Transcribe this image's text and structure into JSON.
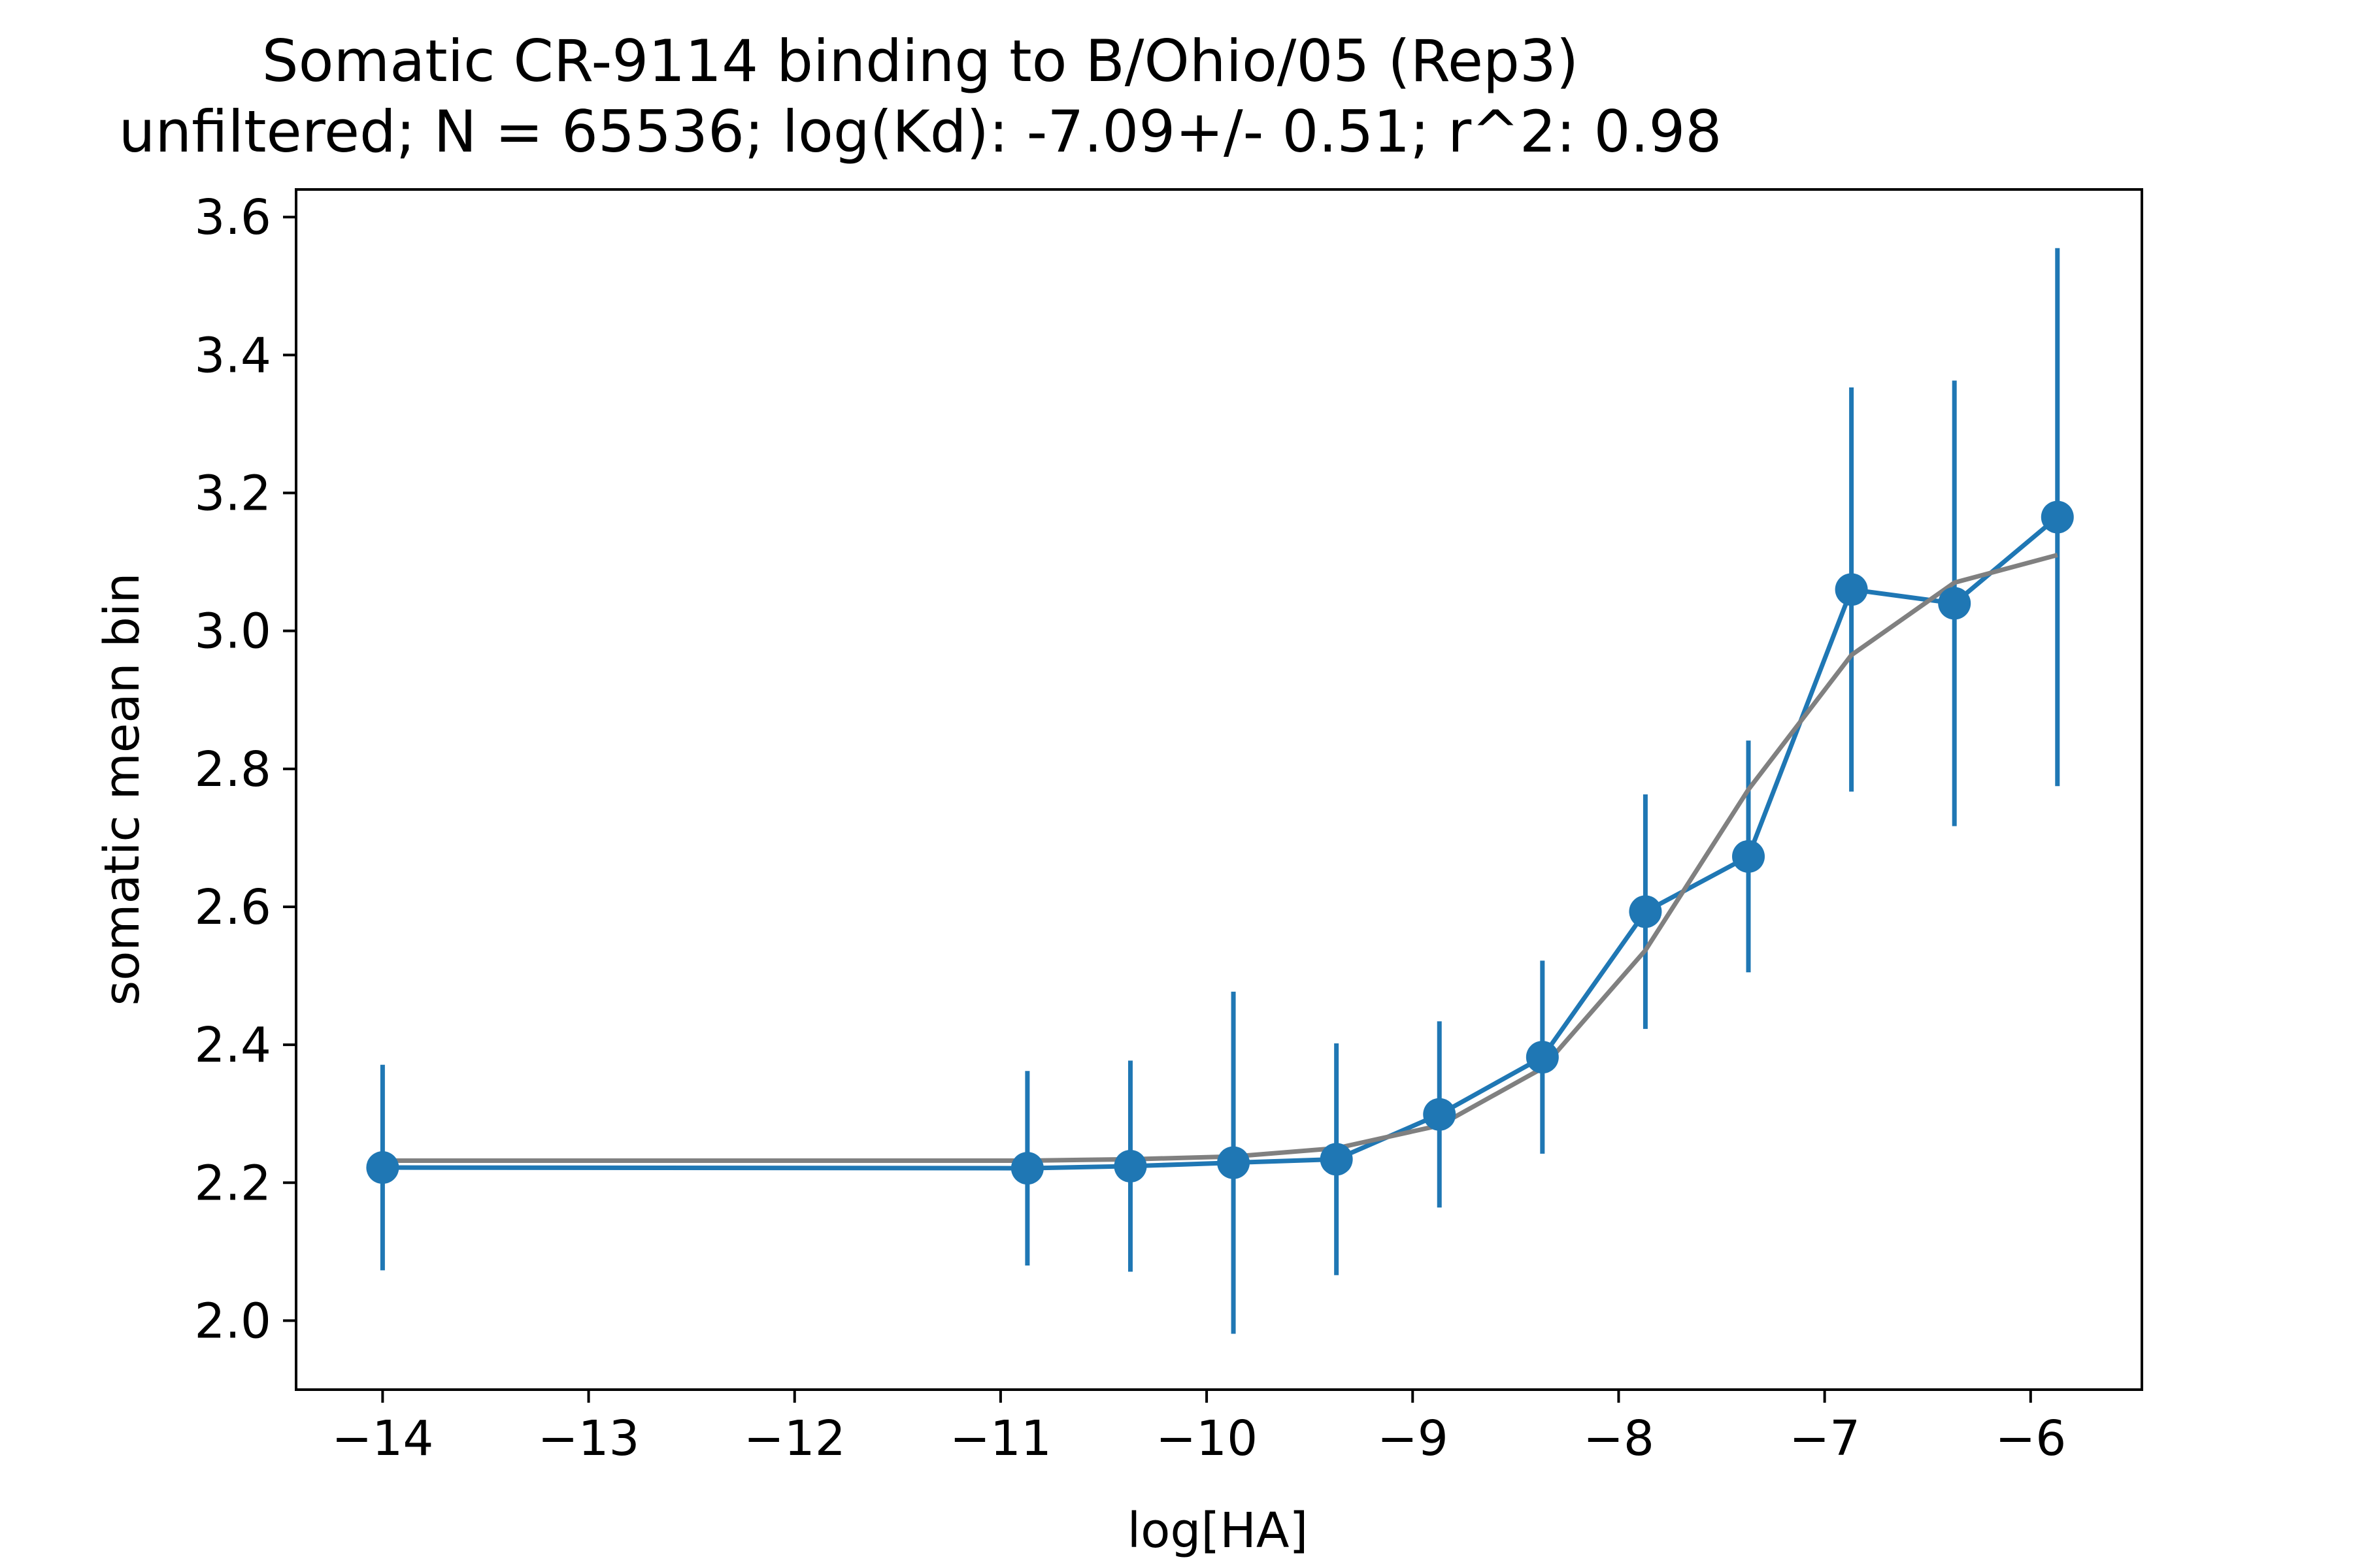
{
  "chart_data": {
    "type": "line",
    "title": "Somatic CR-9114 binding to B/Ohio/05 (Rep3)",
    "subtitle": "unfiltered; N = 65536; log(Kd): -7.09+/- 0.51; r^2: 0.98",
    "xlabel": "log[HA]",
    "ylabel": "somatic mean bin",
    "xlim": [
      -14.42,
      -5.46
    ],
    "ylim": [
      1.9,
      3.64
    ],
    "xticks": [
      -14,
      -13,
      -12,
      -11,
      -10,
      -9,
      -8,
      -7,
      -6
    ],
    "xtick_labels": [
      "−14",
      "−13",
      "−12",
      "−11",
      "−10",
      "−9",
      "−8",
      "−7",
      "−6"
    ],
    "yticks": [
      2.0,
      2.2,
      2.4,
      2.6,
      2.8,
      3.0,
      3.2,
      3.4,
      3.6
    ],
    "ytick_labels": [
      "2.0",
      "2.2",
      "2.4",
      "2.6",
      "2.8",
      "3.0",
      "3.2",
      "3.4",
      "3.6"
    ],
    "grid": false,
    "series": [
      {
        "kind": "points-with-errorbars",
        "color": "#1f77b4",
        "x": [
          -14.0,
          -10.87,
          -10.37,
          -9.87,
          -9.37,
          -8.87,
          -8.37,
          -7.87,
          -7.37,
          -6.87,
          -6.37,
          -5.87
        ],
        "y": [
          2.222,
          2.221,
          2.224,
          2.229,
          2.234,
          2.299,
          2.382,
          2.593,
          2.673,
          3.06,
          3.04,
          3.165
        ],
        "yerr": [
          0.149,
          0.141,
          0.153,
          0.248,
          0.168,
          0.135,
          0.14,
          0.17,
          0.168,
          0.293,
          0.323,
          0.39
        ]
      },
      {
        "kind": "fit-line",
        "color": "#808080",
        "x": [
          -14.0,
          -10.87,
          -10.37,
          -9.87,
          -9.37,
          -8.87,
          -8.37,
          -7.87,
          -7.37,
          -6.87,
          -6.37,
          -5.87
        ],
        "y": [
          2.232,
          2.232,
          2.234,
          2.238,
          2.25,
          2.283,
          2.366,
          2.537,
          2.77,
          2.965,
          3.07,
          3.11
        ]
      }
    ]
  }
}
